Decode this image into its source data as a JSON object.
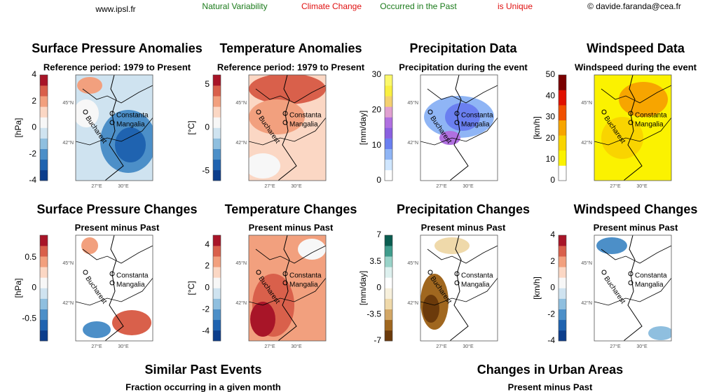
{
  "header": {
    "website": "www.ipsl.fr",
    "left_note": "Natural Variability",
    "red_note_1": "Climate Change",
    "green_note": "Occurred in the Past",
    "red_note_2": "is Unique",
    "contact": "© davide.faranda@cea.fr"
  },
  "map_labels": {
    "lat_north": "45°N",
    "lat_south": "42°N",
    "lon_west": "27°E",
    "lon_east": "30°E",
    "city_1": "Constanta",
    "city_2": "Mangalia",
    "city_3": "Bucharest"
  },
  "panels": [
    {
      "title": "Surface Pressure Anomalies",
      "subtitle": "Reference period: 1979 to Present",
      "unit": "[hPa]",
      "ticks": [
        "4",
        "2",
        "0",
        "-2",
        "-4"
      ]
    },
    {
      "title": "Temperature Anomalies",
      "subtitle": "Reference period: 1979 to Present",
      "unit": "[°C]",
      "ticks": [
        "5",
        "0",
        "-5"
      ]
    },
    {
      "title": "Precipitation Data",
      "subtitle": "Precipitation during the event",
      "unit": "[mm/day]",
      "ticks": [
        "30",
        "20",
        "10",
        "0"
      ]
    },
    {
      "title": "Windspeed Data",
      "subtitle": "Windspeed during the event",
      "unit": "[km/h]",
      "ticks": [
        "50",
        "40",
        "30",
        "20",
        "10",
        "0"
      ]
    },
    {
      "title": "Surface Pressure Changes",
      "subtitle": "Present minus Past",
      "unit": "[hPa]",
      "ticks": [
        "0.5",
        "0",
        "-0.5"
      ]
    },
    {
      "title": "Temperature Changes",
      "subtitle": "Present minus Past",
      "unit": "[°C]",
      "ticks": [
        "4",
        "2",
        "0",
        "-2",
        "-4"
      ]
    },
    {
      "title": "Precipitation Changes",
      "subtitle": "Present minus Past",
      "unit": "[mm/day]",
      "ticks": [
        "7",
        "3.5",
        "0",
        "-3.5",
        "-7"
      ]
    },
    {
      "title": "Windspeed Changes",
      "subtitle": "Present minus Past",
      "unit": "[km/h]",
      "ticks": [
        "4",
        "2",
        "0",
        "-2",
        "-4"
      ]
    }
  ],
  "bottom": {
    "left_title": "Similar Past Events",
    "left_subtitle": "Fraction occurring in a given month",
    "right_title": "Changes in Urban Areas",
    "right_subtitle": "Present minus Past"
  }
}
